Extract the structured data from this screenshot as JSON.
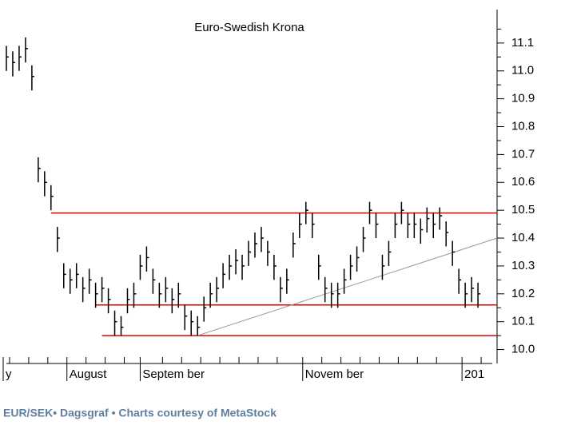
{
  "chart_data": {
    "type": "ohlc",
    "title": "Euro-Swedish Krona",
    "caption": "EUR/SEK• Dagsgraf • Charts courtesy of MetaStock",
    "color": "#000000",
    "x": [
      1,
      3,
      5,
      7,
      9,
      11,
      13,
      15,
      17,
      19,
      21,
      23,
      25,
      27,
      29,
      31,
      33,
      35,
      37,
      39,
      41,
      43,
      45,
      47,
      49,
      51,
      53,
      55,
      57,
      59,
      61,
      63,
      65,
      67,
      69,
      71,
      73,
      75,
      77,
      79,
      81,
      83,
      85,
      87,
      89,
      91,
      93,
      95,
      97,
      99,
      101,
      103,
      105,
      107,
      109,
      111,
      113,
      115,
      117,
      119,
      121,
      123,
      125,
      127,
      129,
      131,
      133,
      135,
      137,
      139,
      141,
      143,
      145,
      147,
      149
    ],
    "high": [
      11.09,
      11.07,
      11.09,
      11.12,
      11.02,
      10.69,
      10.64,
      10.59,
      10.44,
      10.31,
      10.29,
      10.31,
      10.26,
      10.29,
      10.24,
      10.26,
      10.22,
      10.14,
      10.12,
      10.22,
      10.24,
      10.34,
      10.37,
      10.29,
      10.24,
      10.26,
      10.22,
      10.24,
      10.16,
      10.14,
      10.12,
      10.19,
      10.24,
      10.26,
      10.31,
      10.34,
      10.36,
      10.34,
      10.39,
      10.42,
      10.44,
      10.39,
      10.34,
      10.26,
      10.29,
      10.42,
      10.49,
      10.53,
      10.49,
      10.34,
      10.26,
      10.24,
      10.24,
      10.29,
      10.34,
      10.37,
      10.44,
      10.53,
      10.49,
      10.34,
      10.39,
      10.49,
      10.53,
      10.49,
      10.49,
      10.47,
      10.51,
      10.49,
      10.51,
      10.46,
      10.39,
      10.29,
      10.24,
      10.26,
      10.24
    ],
    "low": [
      11.0,
      10.98,
      11.0,
      11.03,
      10.93,
      10.6,
      10.55,
      10.5,
      10.35,
      10.22,
      10.2,
      10.22,
      10.17,
      10.2,
      10.15,
      10.17,
      10.13,
      10.05,
      10.05,
      10.13,
      10.15,
      10.25,
      10.28,
      10.2,
      10.15,
      10.17,
      10.13,
      10.15,
      10.07,
      10.05,
      10.05,
      10.1,
      10.15,
      10.17,
      10.22,
      10.25,
      10.27,
      10.25,
      10.3,
      10.33,
      10.35,
      10.3,
      10.25,
      10.17,
      10.2,
      10.33,
      10.4,
      10.45,
      10.4,
      10.25,
      10.17,
      10.15,
      10.15,
      10.2,
      10.25,
      10.28,
      10.35,
      10.45,
      10.4,
      10.25,
      10.3,
      10.4,
      10.45,
      10.4,
      10.4,
      10.38,
      10.42,
      10.4,
      10.43,
      10.37,
      10.3,
      10.2,
      10.15,
      10.17,
      10.15
    ],
    "close": [
      11.05,
      11.03,
      11.05,
      11.08,
      10.98,
      10.65,
      10.6,
      10.55,
      10.4,
      10.27,
      10.25,
      10.27,
      10.22,
      10.25,
      10.2,
      10.22,
      10.18,
      10.1,
      10.08,
      10.18,
      10.2,
      10.3,
      10.33,
      10.25,
      10.2,
      10.22,
      10.18,
      10.2,
      10.12,
      10.1,
      10.08,
      10.15,
      10.2,
      10.22,
      10.27,
      10.3,
      10.32,
      10.3,
      10.35,
      10.38,
      10.4,
      10.35,
      10.3,
      10.22,
      10.25,
      10.38,
      10.45,
      10.5,
      10.45,
      10.3,
      10.22,
      10.2,
      10.2,
      10.25,
      10.3,
      10.33,
      10.4,
      10.5,
      10.45,
      10.3,
      10.35,
      10.45,
      10.5,
      10.45,
      10.45,
      10.43,
      10.47,
      10.45,
      10.48,
      10.42,
      10.35,
      10.25,
      10.2,
      10.22,
      10.2
    ],
    "xlim": [
      -1,
      155
    ],
    "xticks": [
      {
        "value": 0,
        "label": "y"
      },
      {
        "value": 20,
        "label": "August"
      },
      {
        "value": 43,
        "label": "Septem ber"
      },
      {
        "value": 94,
        "label": "Novem ber"
      },
      {
        "value": 144,
        "label": "201"
      }
    ],
    "xminorticks": [
      2,
      8,
      14,
      26,
      32,
      38,
      50,
      56,
      62,
      68,
      74,
      80,
      86,
      100,
      106,
      112,
      118,
      124,
      130,
      136,
      150
    ],
    "ylim": [
      9.95,
      11.22
    ],
    "yticks": [
      {
        "value": 10,
        "label": "10.0"
      },
      10.1,
      10.2,
      10.3,
      10.4,
      10.5,
      10.6,
      10.7,
      10.8,
      10.9,
      {
        "value": 11,
        "label": "11.0"
      },
      11.1
    ],
    "yminorticks": [
      10.05,
      10.15,
      10.25,
      10.35,
      10.45,
      10.55,
      10.65,
      10.75,
      10.85,
      10.95,
      11.05,
      11.15
    ],
    "hlines": [
      {
        "from": 15,
        "value": 10.49,
        "color": "#e00000"
      },
      {
        "from": 29,
        "value": 10.16,
        "color": "#e00000"
      },
      {
        "from": 31,
        "value": 10.05,
        "color": "#e00000"
      }
    ],
    "trendline": {
      "x": [
        61,
        155
      ],
      "values": [
        10.05,
        10.4
      ],
      "color": "#999999"
    }
  }
}
